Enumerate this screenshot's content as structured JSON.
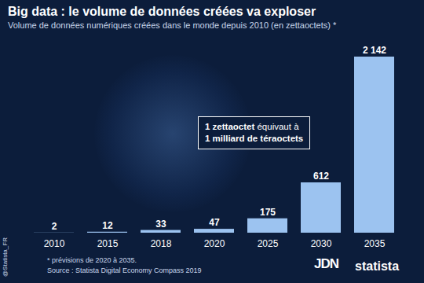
{
  "chart_data": {
    "type": "bar",
    "title": "Big data : le volume de données créées va exploser",
    "subtitle": "Volume de données numériques créées dans le monde depuis 2010 (en zettaoctets) *",
    "categories": [
      "2010",
      "2015",
      "2018",
      "2020",
      "2025",
      "2030",
      "2035"
    ],
    "values": [
      2,
      12,
      33,
      47,
      175,
      612,
      2142
    ],
    "value_labels": [
      "2",
      "12",
      "33",
      "47",
      "175",
      "612",
      "2 142"
    ],
    "color": "#9cc3f0",
    "ylim": [
      0,
      2142
    ],
    "tick_labels": "x",
    "grid": false,
    "data_labels": true,
    "annotation": [
      "1 zettaoctet",
      "équivaut à",
      "1 milliard de téraoctets"
    ],
    "footnote": "* prévisions de 2020 à 2035.",
    "source": "Source : Statista Digital Economy Compass 2019",
    "handle": "@Statista_FR",
    "logos": [
      "JDN",
      "statista"
    ]
  }
}
